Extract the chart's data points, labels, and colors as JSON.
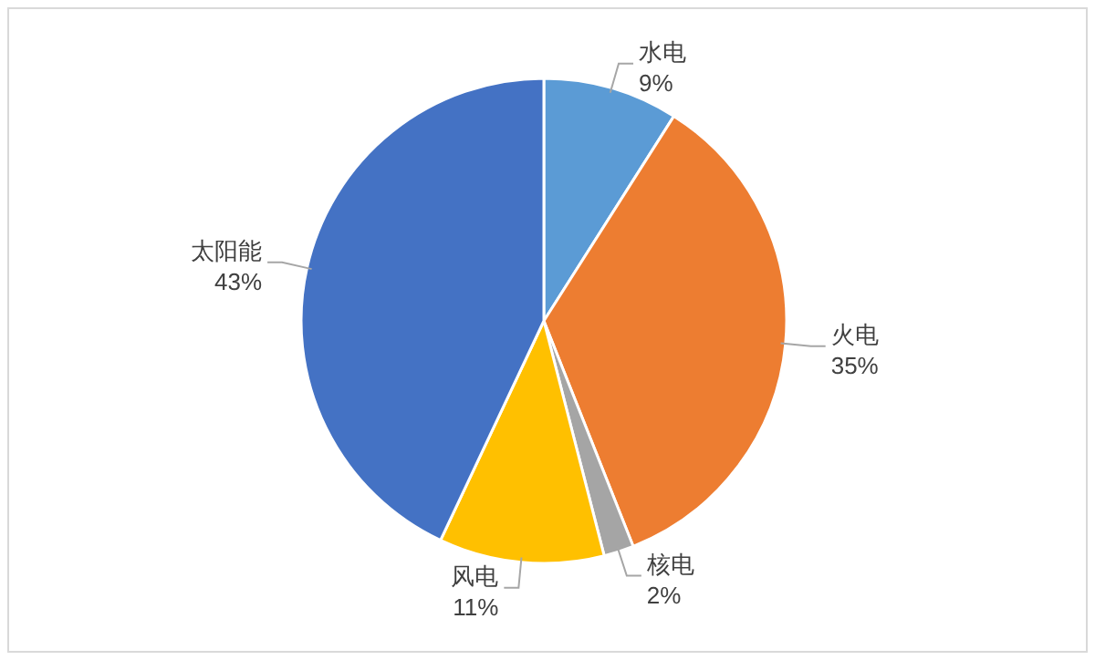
{
  "chart_data": {
    "type": "pie",
    "categories": [
      "水电",
      "火电",
      "核电",
      "风电",
      "太阳能"
    ],
    "values": [
      9,
      35,
      2,
      11,
      43
    ],
    "value_labels": [
      "9%",
      "35%",
      "2%",
      "11%",
      "43%"
    ],
    "colors": [
      "#5b9bd5",
      "#ed7d31",
      "#a5a5a5",
      "#ffc000",
      "#4472c4"
    ]
  }
}
